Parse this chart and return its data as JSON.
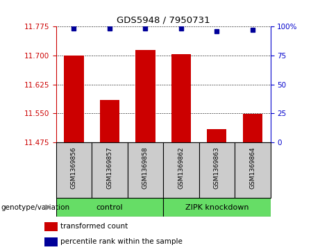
{
  "title": "GDS5948 / 7950731",
  "samples": [
    "GSM1369856",
    "GSM1369857",
    "GSM1369858",
    "GSM1369862",
    "GSM1369863",
    "GSM1369864"
  ],
  "bar_values": [
    11.7,
    11.585,
    11.715,
    11.703,
    11.51,
    11.548
  ],
  "percentile_values": [
    98,
    98,
    98,
    98,
    96,
    97
  ],
  "ymin": 11.475,
  "ymax": 11.775,
  "y_ticks": [
    11.475,
    11.55,
    11.625,
    11.7,
    11.775
  ],
  "right_yticks": [
    0,
    25,
    50,
    75,
    100
  ],
  "bar_color": "#cc0000",
  "dot_color": "#000099",
  "group_labels": [
    "control",
    "ZIPK knockdown"
  ],
  "group_color": "#66dd66",
  "group_bg_color": "#cccccc",
  "left_tick_color": "#cc0000",
  "right_tick_color": "#0000cc",
  "legend_items": [
    {
      "color": "#cc0000",
      "label": "transformed count"
    },
    {
      "color": "#000099",
      "label": "percentile rank within the sample"
    }
  ],
  "genotype_label": "genotype/variation"
}
